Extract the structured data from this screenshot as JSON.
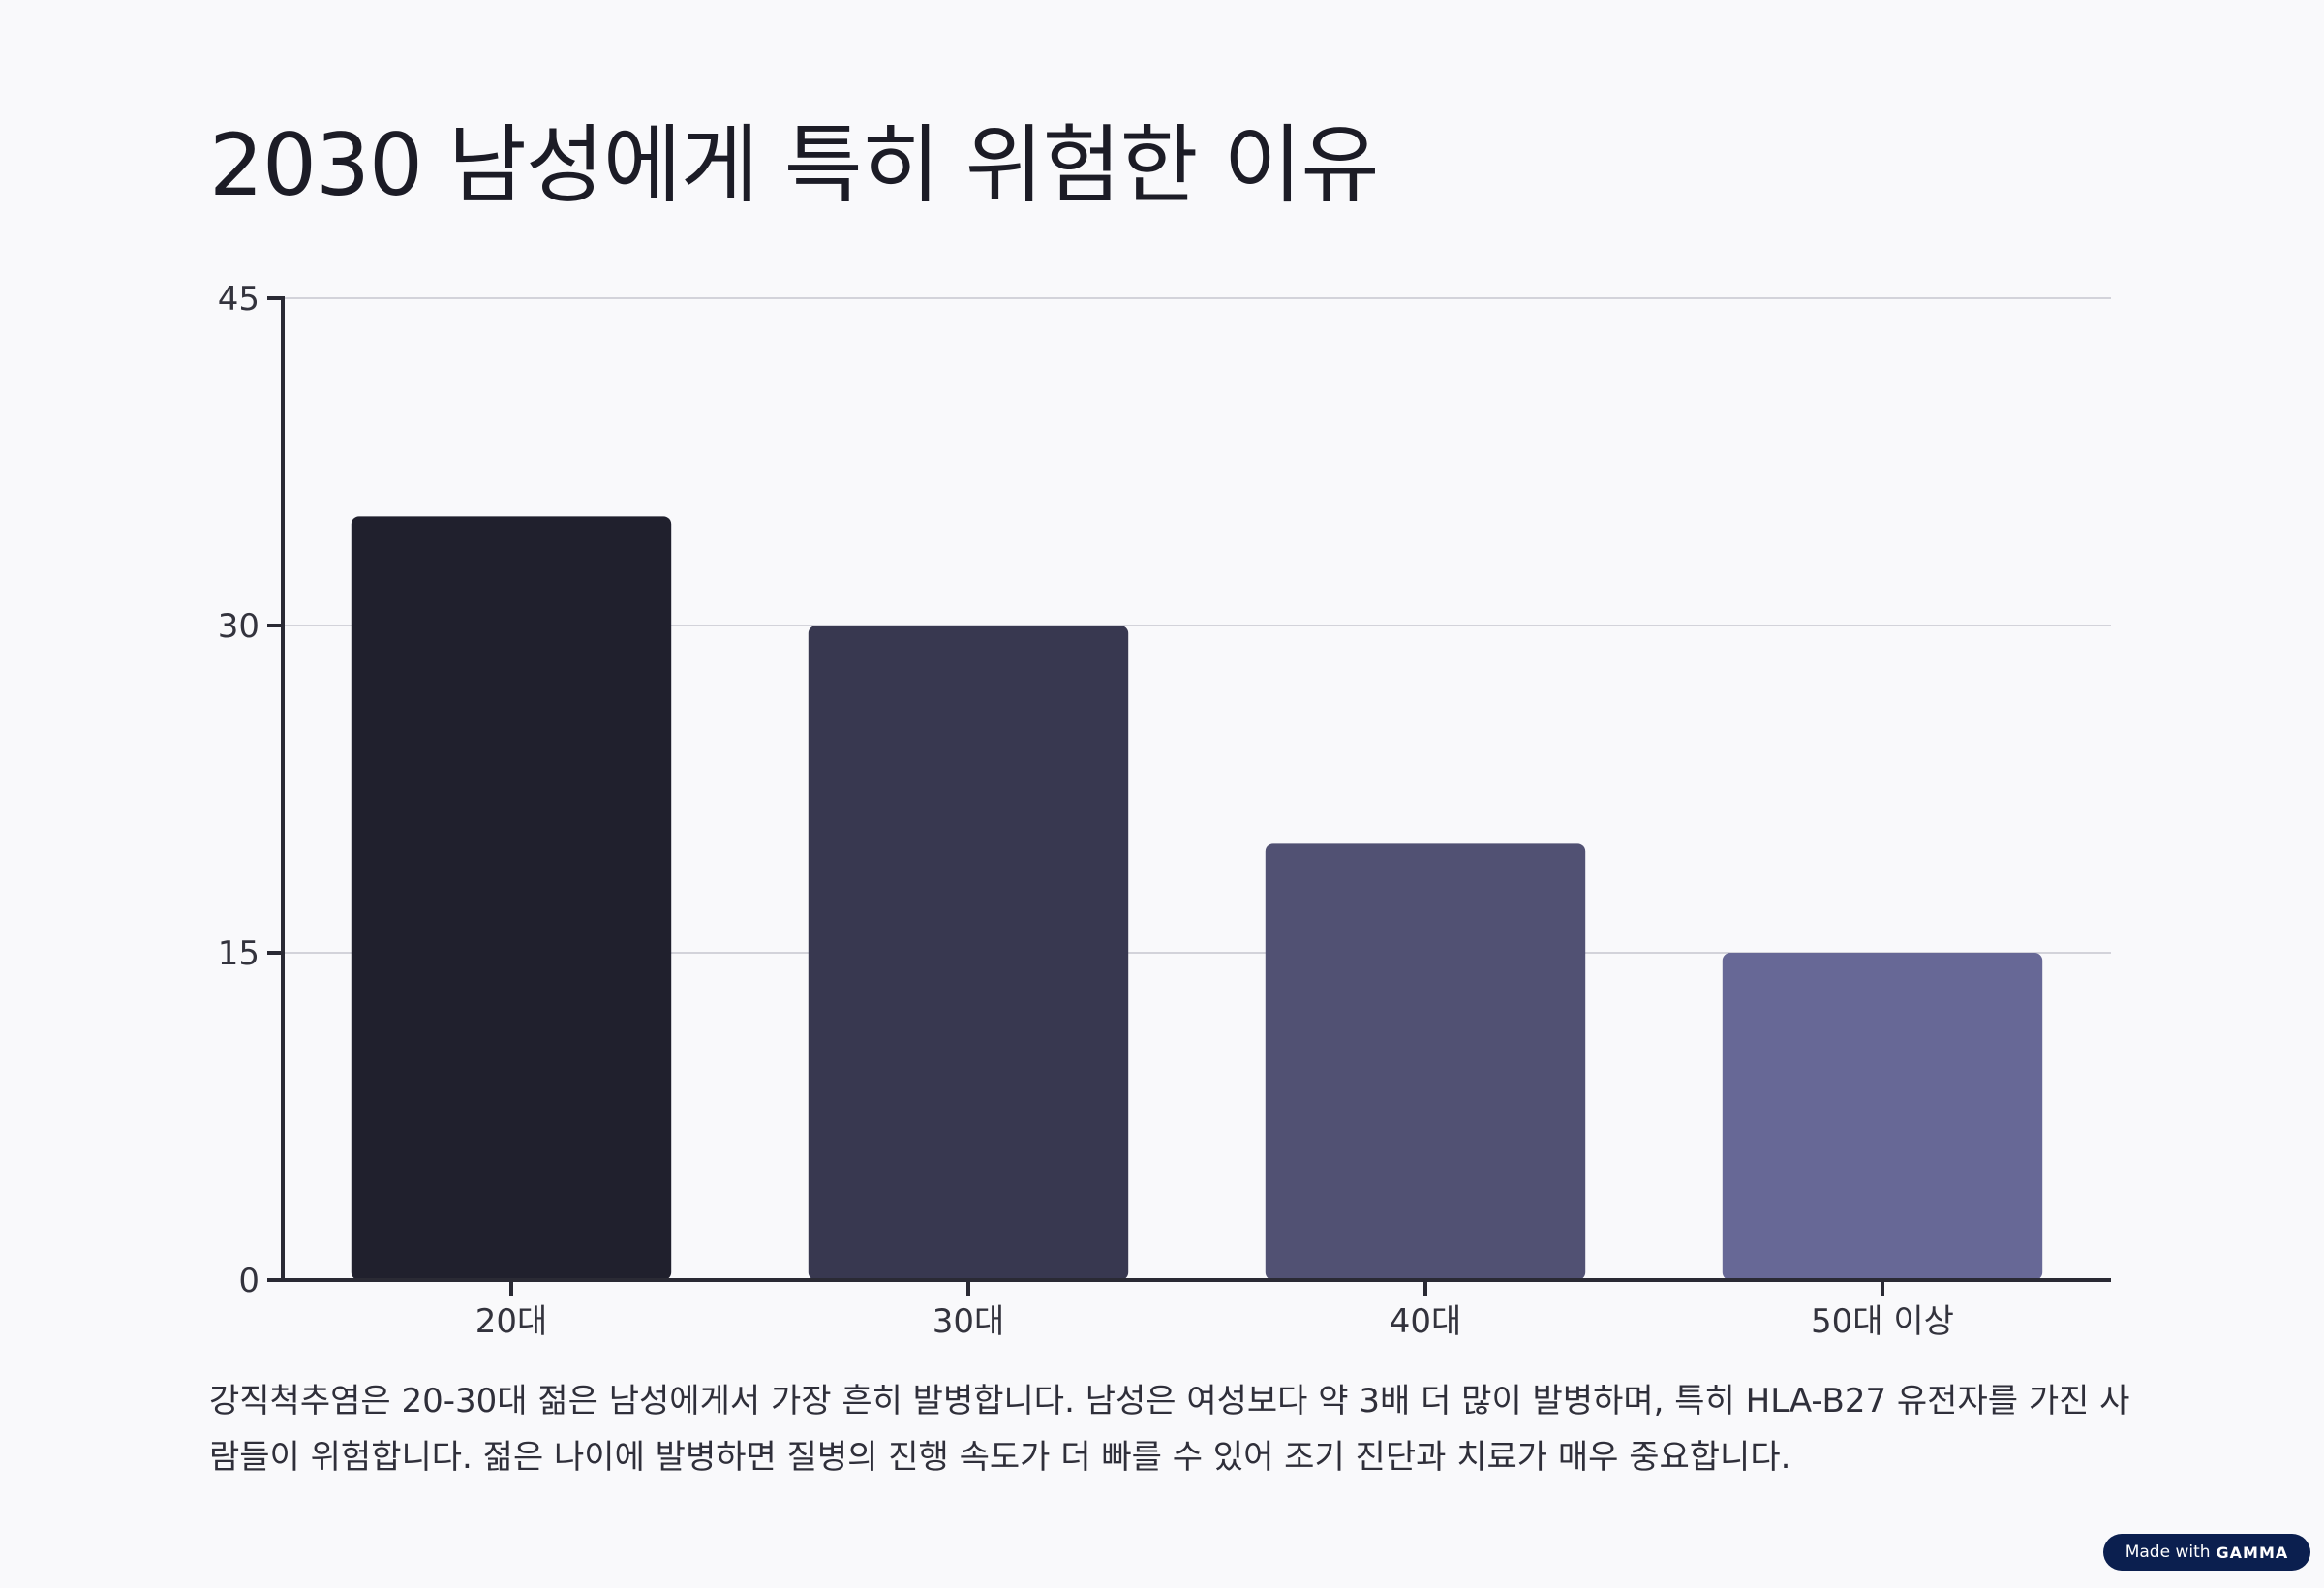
{
  "page": {
    "title": "2030 남성에게 특히 위험한 이유",
    "description": "강직척추염은 20-30대 젊은 남성에게서 가장 흔히 발병합니다. 남성은 여성보다 약 3배 더 많이 발병하며, 특히 HLA-B27 유전자를 가진 사람들이 위험합니다. 젊은 나이에 발병하면 질병의 진행 속도가 더 빠를 수 있어 조기 진단과 치료가 매우 중요합니다."
  },
  "badge": {
    "prefix": "Made with",
    "brand": "GAMMA"
  },
  "chart_data": {
    "type": "bar",
    "categories": [
      "20대",
      "30대",
      "40대",
      "50대 이상"
    ],
    "values": [
      35,
      30,
      20,
      15
    ],
    "colors": [
      "#20202d",
      "#383850",
      "#515173",
      "#676896"
    ],
    "ylim": [
      0,
      45
    ],
    "yticks": [
      0,
      15,
      30,
      45
    ],
    "grid": true,
    "title": "",
    "xlabel": "",
    "ylabel": ""
  }
}
